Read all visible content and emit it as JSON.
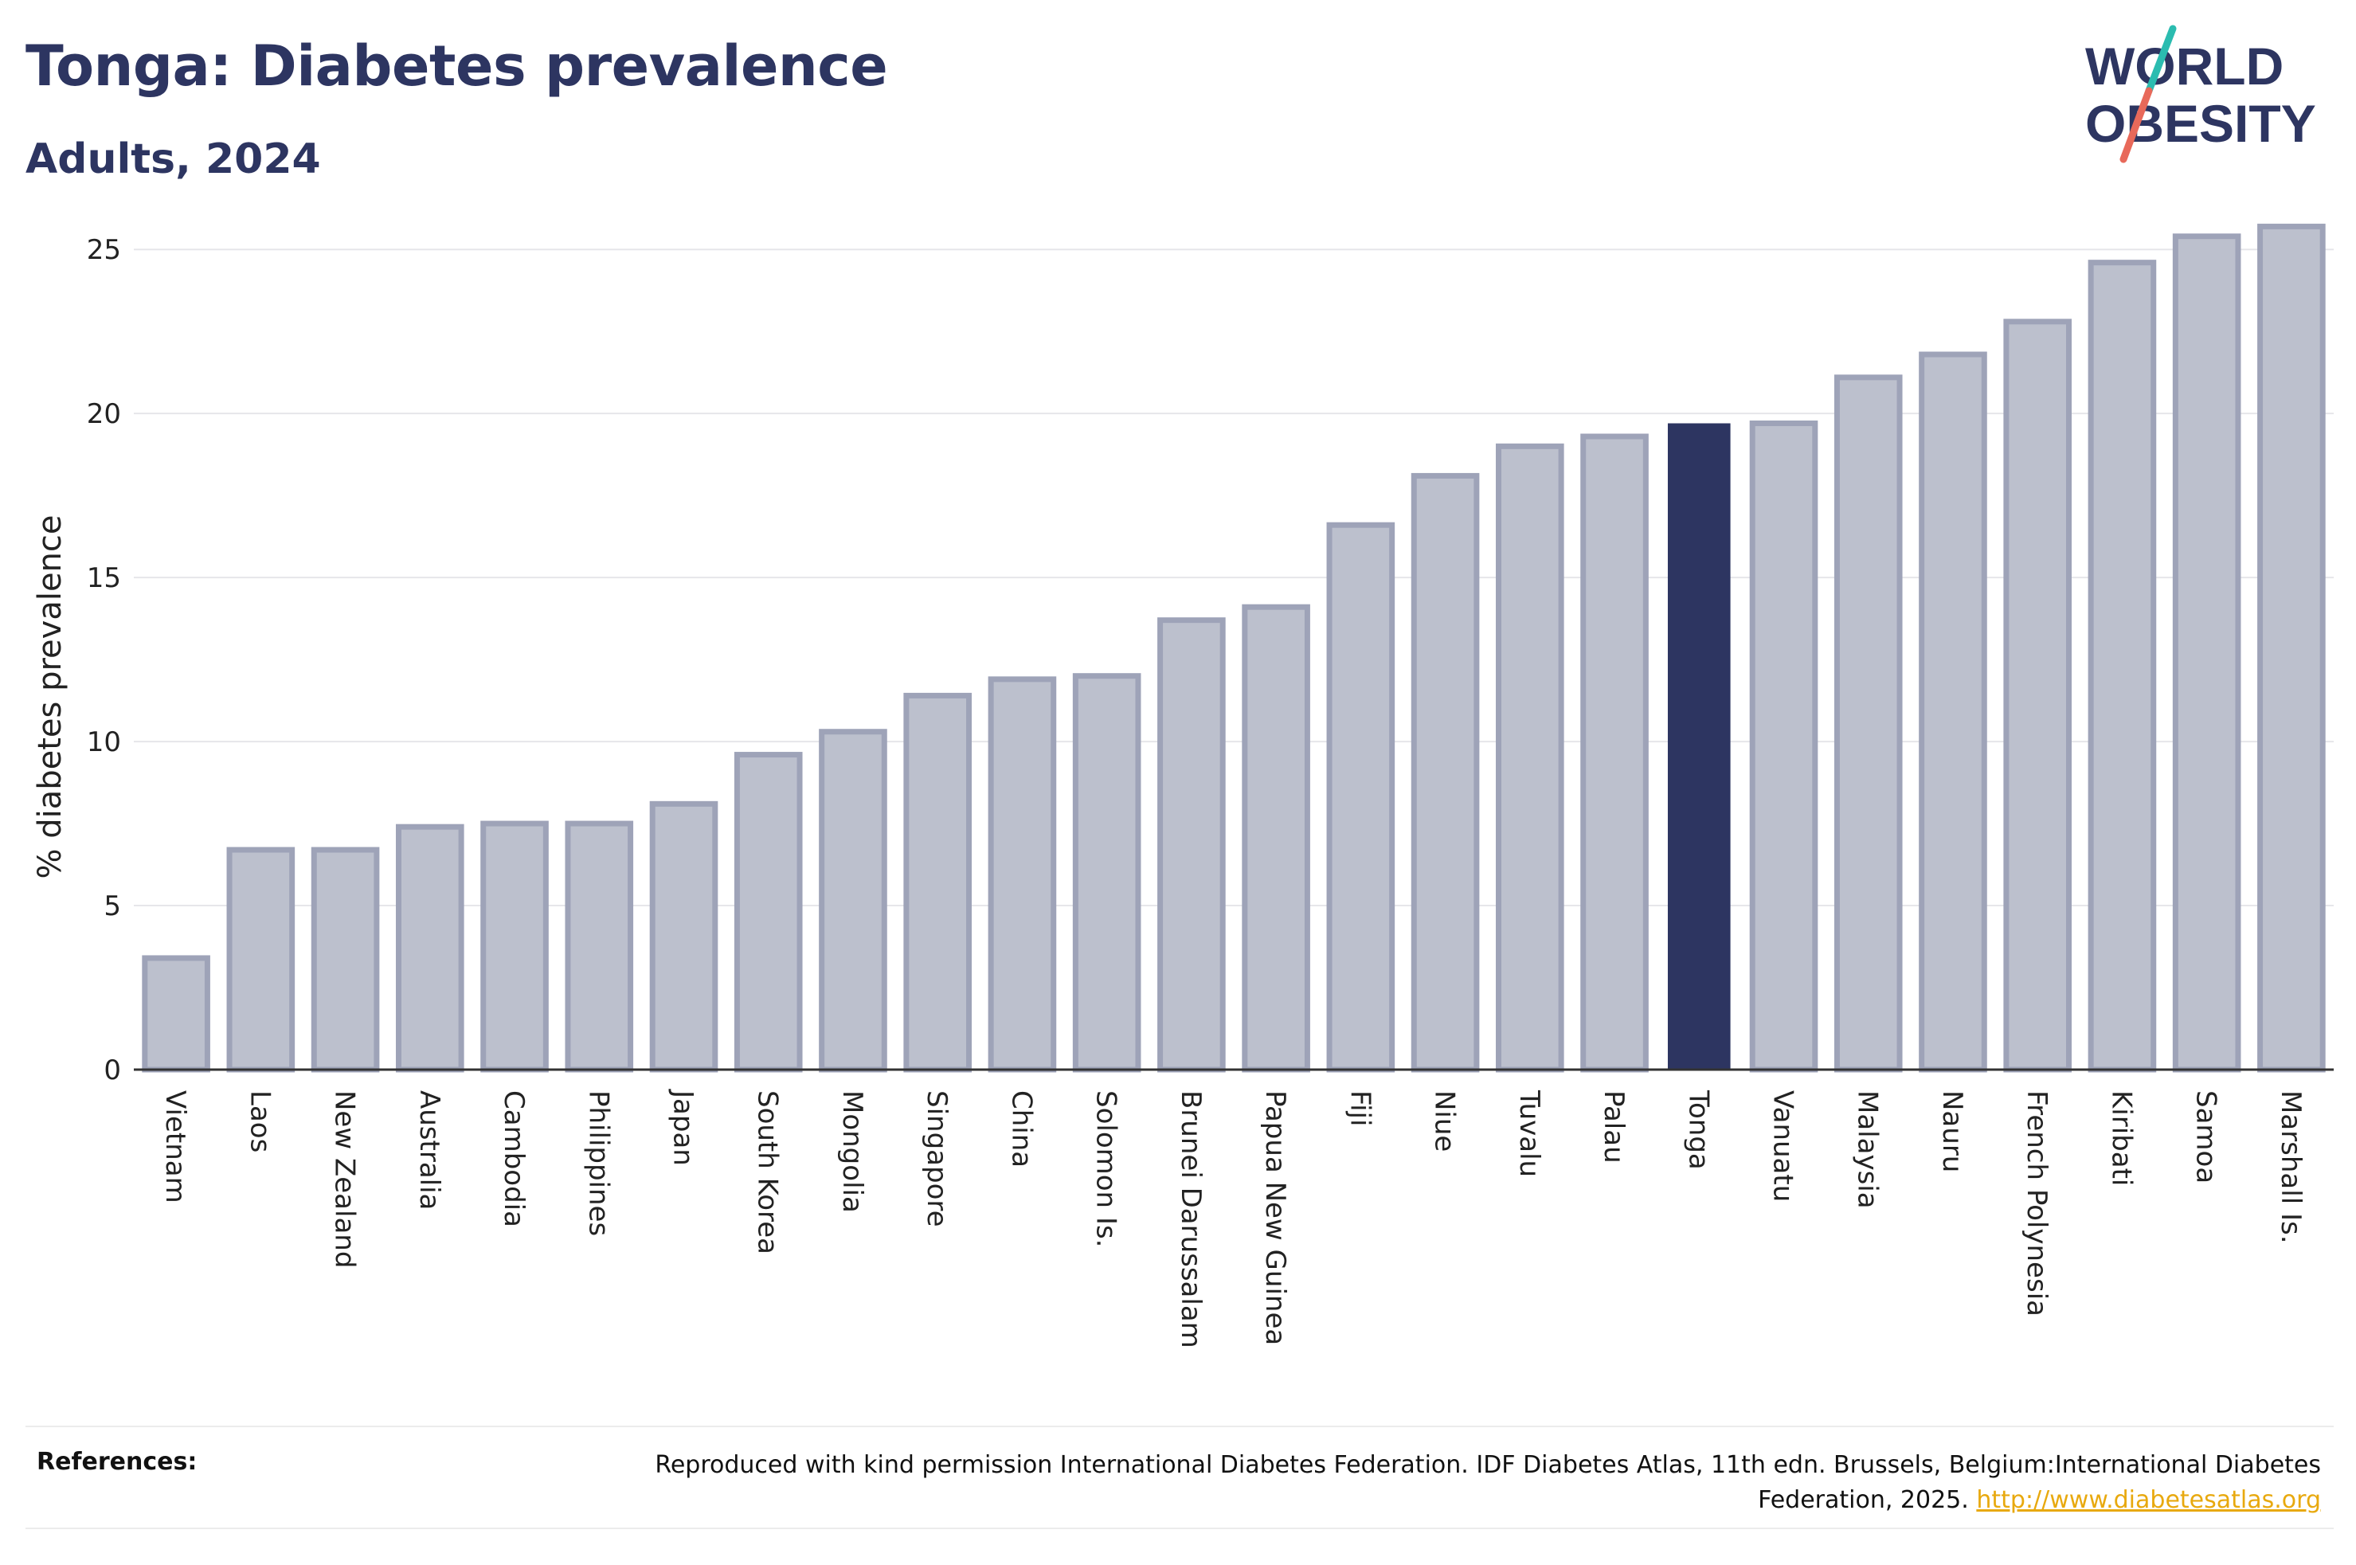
{
  "header": {
    "title": "Tonga: Diabetes prevalence",
    "subtitle": "Adults, 2024"
  },
  "logo": {
    "line1": "WORLD",
    "line2": "OBESITY",
    "text_color": "#2d3561",
    "slash_colors": [
      "#2bbcb0",
      "#e8695a"
    ]
  },
  "chart_data": {
    "type": "bar",
    "ylabel": "% diabetes prevalence",
    "ylim": [
      0,
      26
    ],
    "yticks": [
      0,
      5,
      10,
      15,
      20,
      25
    ],
    "grid": true,
    "highlight": "Tonga",
    "colors": {
      "bar": "#bcc0cd",
      "bar_border": "#9ea3b8",
      "highlight": "#2d3561",
      "grid": "#e6e6ea"
    },
    "categories": [
      "Vietnam",
      "Laos",
      "New Zealand",
      "Australia",
      "Cambodia",
      "Philippines",
      "Japan",
      "South Korea",
      "Mongolia",
      "Singapore",
      "China",
      "Solomon Is.",
      "Brunei Darussalam",
      "Papua New Guinea",
      "Fiji",
      "Niue",
      "Tuvalu",
      "Palau",
      "Tonga",
      "Vanuatu",
      "Malaysia",
      "Nauru",
      "French Polynesia",
      "Kiribati",
      "Samoa",
      "Marshall Is."
    ],
    "values": [
      3.4,
      6.7,
      6.7,
      7.4,
      7.5,
      7.5,
      8.1,
      9.6,
      10.3,
      11.4,
      11.9,
      12.0,
      13.7,
      14.1,
      16.6,
      18.1,
      19.0,
      19.3,
      19.7,
      19.7,
      21.1,
      21.8,
      22.8,
      24.6,
      25.4,
      25.7
    ]
  },
  "footer": {
    "references_label": "References:",
    "reference_text": "Reproduced with kind permission International Diabetes Federation. IDF Diabetes Atlas, 11th edn. Brussels, Belgium:International Diabetes Federation, 2025.",
    "reference_link": "http://www.diabetesatlas.org"
  }
}
